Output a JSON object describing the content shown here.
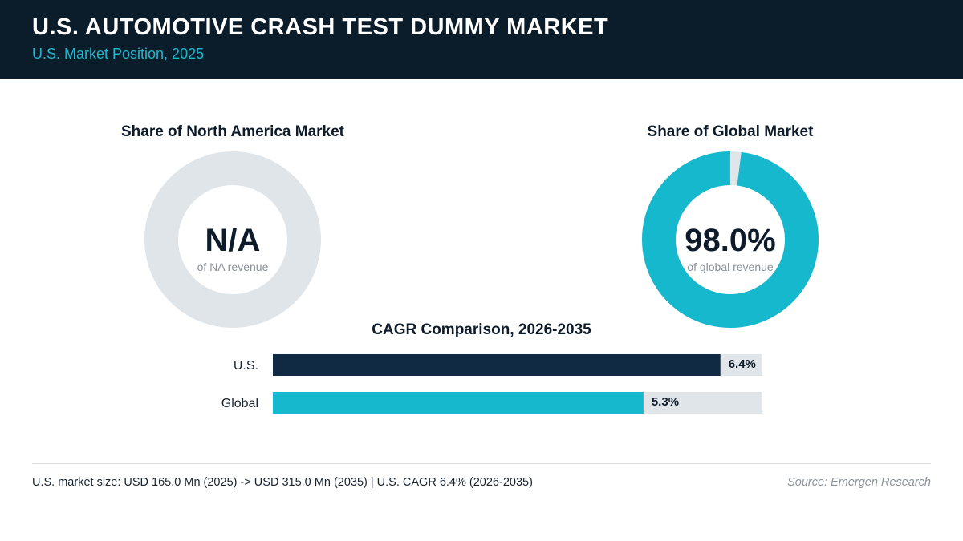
{
  "header": {
    "title": "U.S. AUTOMOTIVE CRASH TEST DUMMY MARKET",
    "subtitle": "U.S. Market Position, 2025"
  },
  "colors": {
    "header_bg": "#0b1c2b",
    "accent": "#15b8cc",
    "dark_bar": "#0f2a42",
    "track": "#e0e5ea",
    "text_dark": "#0d1b2a",
    "text_muted": "#8a9199"
  },
  "chart_data": [
    {
      "type": "pie",
      "title": "Share of North America Market",
      "center_value": "N/A",
      "center_caption": "of NA revenue",
      "values": [],
      "share_percent": null
    },
    {
      "type": "pie",
      "title": "Share of Global Market",
      "center_value": "98.0%",
      "center_caption": "of global revenue",
      "share_percent": 98.0
    },
    {
      "type": "bar",
      "orientation": "horizontal",
      "title": "CAGR Comparison, 2026-2035",
      "categories": [
        "U.S.",
        "Global"
      ],
      "values": [
        6.4,
        5.3
      ],
      "value_labels": [
        "6.4%",
        "5.3%"
      ],
      "xlim": [
        0,
        7.0
      ]
    }
  ],
  "footer": {
    "summary": "U.S. market size: USD 165.0 Mn (2025) -> USD 315.0 Mn (2035)  |  U.S. CAGR 6.4% (2026-2035)",
    "source": "Source: Emergen Research"
  }
}
